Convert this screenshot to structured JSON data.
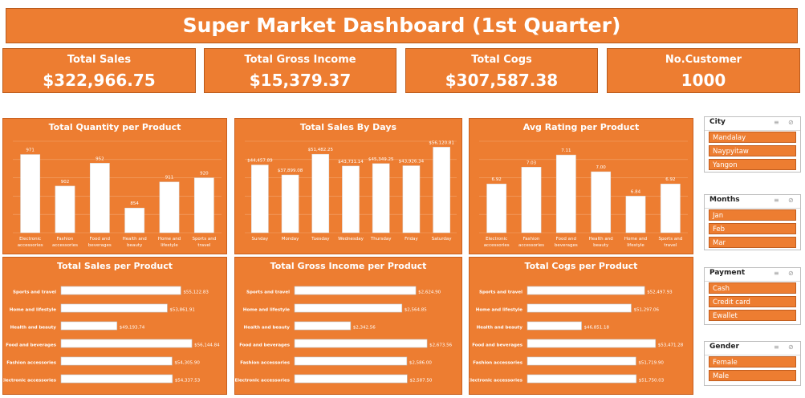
{
  "header": {
    "title": "Super Market Dashboard (1st Quarter)"
  },
  "kpis": [
    {
      "label": "Total Sales",
      "value": "$322,966.75"
    },
    {
      "label": "Total Gross Income",
      "value": "$15,379.37"
    },
    {
      "label": "Total Cogs",
      "value": "$307,587.38"
    },
    {
      "label": "No.Customer",
      "value": "1000"
    }
  ],
  "chart_data": [
    {
      "id": "qty",
      "type": "bar",
      "title": "Total Quantity per Product",
      "categories": [
        "Electronic accessories",
        "Fashion accessories",
        "Food and beverages",
        "Health and beauty",
        "Home and lifestyle",
        "Sports and travel"
      ],
      "values": [
        971,
        902,
        952,
        854,
        911,
        920
      ],
      "labels": [
        "971",
        "902",
        "952",
        "854",
        "911",
        "920"
      ],
      "ylim": [
        800,
        1000
      ]
    },
    {
      "id": "days",
      "type": "bar",
      "title": "Total Sales By Days",
      "categories": [
        "Sunday",
        "Monday",
        "Tuesday",
        "Wednesday",
        "Thursday",
        "Friday",
        "Saturday"
      ],
      "values": [
        44457.89,
        37899.08,
        51482.25,
        43731.14,
        45349.25,
        43926.34,
        56120.81
      ],
      "labels": [
        "$44,457.89",
        "$37,899.08",
        "$51,482.25",
        "$43,731.14",
        "$45,349.25",
        "$43,926.34",
        "$56,120.81"
      ],
      "ylim": [
        0,
        60000
      ]
    },
    {
      "id": "rating",
      "type": "bar",
      "title": "Avg Rating per Product",
      "categories": [
        "Electronic accessories",
        "Fashion accessories",
        "Food and beverages",
        "Health and beauty",
        "Home and lifestyle",
        "Sports and travel"
      ],
      "values": [
        6.92,
        7.03,
        7.11,
        7.0,
        6.84,
        6.92
      ],
      "labels": [
        "6.92",
        "7.03",
        "7.11",
        "7.00",
        "6.84",
        "6.92"
      ],
      "ylim": [
        6.6,
        7.2
      ]
    },
    {
      "id": "sales_prod",
      "type": "bar",
      "orientation": "horizontal",
      "title": "Total Sales per Product",
      "categories": [
        "Sports and travel",
        "Home and lifestyle",
        "Health and beauty",
        "Food and beverages",
        "Fashion accessories",
        "Electronic accessories"
      ],
      "values": [
        55122.83,
        53861.91,
        49193.74,
        56144.84,
        54305.9,
        54337.53
      ],
      "labels": [
        "$55,122.83",
        "$53,861.91",
        "$49,193.74",
        "$56,144.84",
        "$54,305.90",
        "$54,337.53"
      ],
      "ylim": [
        44000,
        58000
      ]
    },
    {
      "id": "gross_prod",
      "type": "bar",
      "orientation": "horizontal",
      "title": "Total Gross Income per Product",
      "categories": [
        "Sports and travel",
        "Home and lifestyle",
        "Health and beauty",
        "Food and beverages",
        "Fashion accessories",
        "Electronic accessories"
      ],
      "values": [
        2624.9,
        2564.85,
        2342.56,
        2673.56,
        2586.0,
        2587.5
      ],
      "labels": [
        "$2,624.90",
        "$2,564.85",
        "$2,342.56",
        "$2,673.56",
        "$2,586.00",
        "$2,587.50"
      ],
      "ylim": [
        2100,
        2760
      ]
    },
    {
      "id": "cogs_prod",
      "type": "bar",
      "orientation": "horizontal",
      "title": "Total Cogs per Product",
      "categories": [
        "Sports and travel",
        "Home and lifestyle",
        "Health and beauty",
        "Food and beverages",
        "Fashion accessories",
        "Electronic accessories"
      ],
      "values": [
        52497.93,
        51297.06,
        46851.18,
        53471.28,
        51719.9,
        51750.03
      ],
      "labels": [
        "$52,497.93",
        "$51,297.06",
        "$46,851.18",
        "$53,471.28",
        "$51,719.90",
        "$51,750.03"
      ],
      "ylim": [
        42000,
        55500
      ]
    }
  ],
  "slicers": [
    {
      "title": "City",
      "items": [
        "Mandalay",
        "Naypyitaw",
        "Yangon"
      ]
    },
    {
      "title": "Months",
      "items": [
        "Jan",
        "Feb",
        "Mar"
      ]
    },
    {
      "title": "Payment",
      "items": [
        "Cash",
        "Credit card",
        "Ewallet"
      ]
    },
    {
      "title": "Gender",
      "items": [
        "Female",
        "Male"
      ]
    }
  ],
  "icons": {
    "multi_select": "multi-select-icon",
    "clear_filter": "clear-filter-icon"
  },
  "colors": {
    "accent": "#ed7d31",
    "bar": "#ffffff",
    "grid": "#f3a56e"
  }
}
